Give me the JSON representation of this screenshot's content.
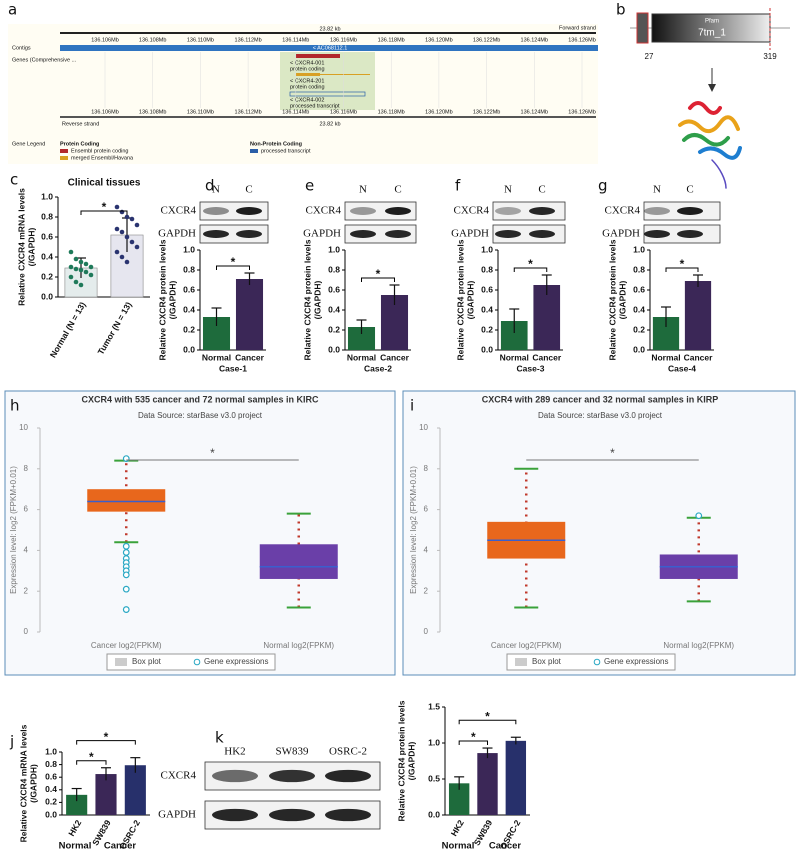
{
  "panel_labels": [
    "a",
    "b",
    "c",
    "d",
    "e",
    "f",
    "g",
    "h",
    "i",
    "j",
    "k"
  ],
  "genome_browser": {
    "size_top": "23.82 kb",
    "forward_strand": "Forward strand",
    "positions": [
      "136.106Mb",
      "136.108Mb",
      "136.110Mb",
      "136.112Mb",
      "136.114Mb",
      "136.116Mb",
      "136.118Mb",
      "136.120Mb",
      "136.122Mb",
      "136.124Mb",
      "136.126Mb"
    ],
    "track_labels": [
      "Contigs",
      "Genes (Comprehensive ..."
    ],
    "contig": "< AC068112.1",
    "transcripts": [
      {
        "name": "< CXCR4-001",
        "biotype": "protein coding"
      },
      {
        "name": "< CXCR4-201",
        "biotype": "protein coding"
      },
      {
        "name": "< CXCR4-002",
        "biotype": "processed transcript"
      }
    ],
    "reverse_strand": "Reverse strand",
    "size_bottom": "23.82 kb",
    "legend": {
      "title": "Gene Legend",
      "groups": [
        {
          "name": "Protein Coding",
          "items": [
            "Ensembl protein coding",
            "merged Ensembl/Havana"
          ]
        },
        {
          "name": "Non-Protein Coding",
          "items": [
            "processed transcript"
          ]
        }
      ]
    }
  },
  "domain_diagram": {
    "family": "Pfam",
    "domain": "7tm_1",
    "start": 27,
    "end": 319
  },
  "blots": [
    {
      "lanes": [
        "N",
        "C"
      ],
      "rows": [
        "CXCR4",
        "GAPDH"
      ]
    },
    {
      "lanes": [
        "N",
        "C"
      ],
      "rows": [
        "CXCR4",
        "GAPDH"
      ]
    },
    {
      "lanes": [
        "N",
        "C"
      ],
      "rows": [
        "CXCR4",
        "GAPDH"
      ]
    },
    {
      "lanes": [
        "N",
        "C"
      ],
      "rows": [
        "CXCR4",
        "GAPDH"
      ]
    },
    {
      "lanes": [
        "HK2",
        "SW839",
        "OSRC-2"
      ],
      "rows": [
        "CXCR4",
        "GAPDH"
      ]
    }
  ],
  "chart_data": [
    {
      "type": "bar",
      "title": "Clinical tissues",
      "ylabel": [
        "Relative CXCR4 mRNA levels",
        "(/GAPDH)"
      ],
      "categories": [
        "Normal (N = 13)",
        "Tumor (N = 13)"
      ],
      "values": [
        0.29,
        0.62
      ],
      "errors": [
        0.1,
        0.17
      ],
      "colors": [
        "#e4ecec",
        "#e6e6ef"
      ],
      "point_colors": [
        "#1f7a5a",
        "#2a3470"
      ],
      "points": [
        [
          0.45,
          0.38,
          0.35,
          0.33,
          0.3,
          0.3,
          0.28,
          0.27,
          0.25,
          0.22,
          0.2,
          0.15,
          0.12
        ],
        [
          0.9,
          0.85,
          0.8,
          0.78,
          0.72,
          0.68,
          0.65,
          0.6,
          0.55,
          0.5,
          0.45,
          0.4,
          0.35
        ]
      ],
      "ylim": [
        0,
        1
      ],
      "yticks": [
        {
          "value": 0,
          "label": "0.0"
        },
        0.2,
        0.4,
        0.6,
        0.8,
        {
          "value": 1,
          "label": "1.0"
        }
      ],
      "annotations": [
        "*"
      ]
    },
    {
      "type": "bar",
      "ylabel": [
        "Relative CXCR4 protein levels",
        "(/GAPDH)"
      ],
      "categories": [
        "Normal",
        "Cancer"
      ],
      "xlabel": "Case-1",
      "values": [
        0.33,
        0.71
      ],
      "errors": [
        0.09,
        0.06
      ],
      "colors": [
        "#1e6b3c",
        "#3b2757"
      ],
      "ylim": [
        0,
        1
      ],
      "yticks": [
        {
          "value": 0,
          "label": "0.0"
        },
        0.2,
        0.4,
        0.6,
        0.8,
        {
          "value": 1,
          "label": "1.0"
        }
      ],
      "annotations": [
        "*"
      ]
    },
    {
      "type": "bar",
      "ylabel": [
        "Relative CXCR4 protein levels",
        "(/GAPDH)"
      ],
      "categories": [
        "Normal",
        "Cancer"
      ],
      "xlabel": "Case-2",
      "values": [
        0.23,
        0.55
      ],
      "errors": [
        0.07,
        0.1
      ],
      "colors": [
        "#1e6b3c",
        "#3b2757"
      ],
      "ylim": [
        0,
        1
      ],
      "yticks": [
        {
          "value": 0,
          "label": "0.0"
        },
        0.2,
        0.4,
        0.6,
        0.8,
        {
          "value": 1,
          "label": "1.0"
        }
      ],
      "annotations": [
        "*"
      ]
    },
    {
      "type": "bar",
      "ylabel": [
        "Relative CXCR4 protein levels",
        "(/GAPDH)"
      ],
      "categories": [
        "Normal",
        "Cancer"
      ],
      "xlabel": "Case-3",
      "values": [
        0.29,
        0.65
      ],
      "errors": [
        0.12,
        0.1
      ],
      "colors": [
        "#1e6b3c",
        "#3b2757"
      ],
      "ylim": [
        0,
        1
      ],
      "yticks": [
        {
          "value": 0,
          "label": "0.0"
        },
        0.2,
        0.4,
        0.6,
        0.8,
        {
          "value": 1,
          "label": "1.0"
        }
      ],
      "annotations": [
        "*"
      ]
    },
    {
      "type": "bar",
      "ylabel": [
        "Relative CXCR4 protein levels",
        "(/GAPDH)"
      ],
      "categories": [
        "Normal",
        "Cancer"
      ],
      "xlabel": "Case-4",
      "values": [
        0.33,
        0.69
      ],
      "errors": [
        0.1,
        0.06
      ],
      "colors": [
        "#1e6b3c",
        "#3b2757"
      ],
      "ylim": [
        0,
        1
      ],
      "yticks": [
        {
          "value": 0,
          "label": "0.0"
        },
        0.2,
        0.4,
        0.6,
        0.8,
        {
          "value": 1,
          "label": "1.0"
        }
      ],
      "annotations": [
        "*"
      ]
    },
    {
      "type": "box",
      "title": "CXCR4 with 535 cancer and 72 normal samples in KIRC",
      "subtitle": "Data Source: starBase v3.0 project",
      "ylabel": "Expression level: log2 (FPKM+0.01)",
      "categories": [
        "Cancer log2(FPKM)",
        "Normal log2(FPKM)"
      ],
      "colors": [
        "#e8671c",
        "#6a3fa8"
      ],
      "boxes": [
        {
          "whislo": 4.4,
          "q1": 5.9,
          "med": 6.4,
          "q3": 7.0,
          "whishi": 8.4,
          "fliers": [
            8.5,
            4.2,
            3.9,
            3.6,
            3.4,
            3.2,
            3.0,
            2.8,
            2.1,
            1.1
          ]
        },
        {
          "whislo": 1.2,
          "q1": 2.6,
          "med": 3.2,
          "q3": 4.3,
          "whishi": 5.8,
          "fliers": []
        }
      ],
      "ylim": [
        0,
        10
      ],
      "yticks": [
        0,
        2,
        4,
        6,
        8,
        10
      ],
      "legend": [
        "Box plot",
        "Gene expressions"
      ],
      "annotations": [
        "*"
      ]
    },
    {
      "type": "box",
      "title": "CXCR4 with 289 cancer and 32 normal samples in KIRP",
      "subtitle": "Data Source: starBase v3.0 project",
      "ylabel": "Expression level: log2 (FPKM+0.01)",
      "categories": [
        "Cancer log2(FPKM)",
        "Normal log2(FPKM)"
      ],
      "colors": [
        "#e8671c",
        "#6a3fa8"
      ],
      "boxes": [
        {
          "whislo": 1.2,
          "q1": 3.6,
          "med": 4.5,
          "q3": 5.4,
          "whishi": 8.0,
          "fliers": []
        },
        {
          "whislo": 1.5,
          "q1": 2.6,
          "med": 3.2,
          "q3": 3.8,
          "whishi": 5.6,
          "fliers": [
            5.7
          ]
        }
      ],
      "ylim": [
        0,
        10
      ],
      "yticks": [
        0,
        2,
        4,
        6,
        8,
        10
      ],
      "legend": [
        "Box plot",
        "Gene expressions"
      ],
      "annotations": [
        "*"
      ]
    },
    {
      "type": "bar",
      "ylabel": [
        "Relative CXCR4 mRNA levels",
        "(/GAPDH)"
      ],
      "categories": [
        "HK2",
        "SW839",
        "OSRC-2"
      ],
      "groups": [
        "Normal",
        "Cancer"
      ],
      "values": [
        0.32,
        0.65,
        0.79
      ],
      "errors": [
        0.1,
        0.1,
        0.12
      ],
      "colors": [
        "#1e6b3c",
        "#3b2757",
        "#27306b"
      ],
      "ylim": [
        0,
        1
      ],
      "yticks": [
        {
          "value": 0,
          "label": "0.0"
        },
        0.2,
        0.4,
        0.6,
        0.8,
        {
          "value": 1,
          "label": "1.0"
        }
      ],
      "annotations": [
        "*",
        "*"
      ]
    },
    {
      "type": "bar",
      "ylabel": [
        "Relative CXCR4 protein levels",
        "(/GAPDH)"
      ],
      "categories": [
        "HK2",
        "SW839",
        "OSRC-2"
      ],
      "groups": [
        "Normal",
        "Cancer"
      ],
      "values": [
        0.44,
        0.86,
        1.03
      ],
      "errors": [
        0.09,
        0.07,
        0.05
      ],
      "colors": [
        "#1e6b3c",
        "#3b2757",
        "#27306b"
      ],
      "ylim": [
        0,
        1.5
      ],
      "yticks": [
        {
          "value": 0,
          "label": "0.0"
        },
        0.5,
        {
          "value": 1,
          "label": "1.0"
        },
        1.5
      ],
      "annotations": [
        "*",
        "*"
      ]
    }
  ]
}
